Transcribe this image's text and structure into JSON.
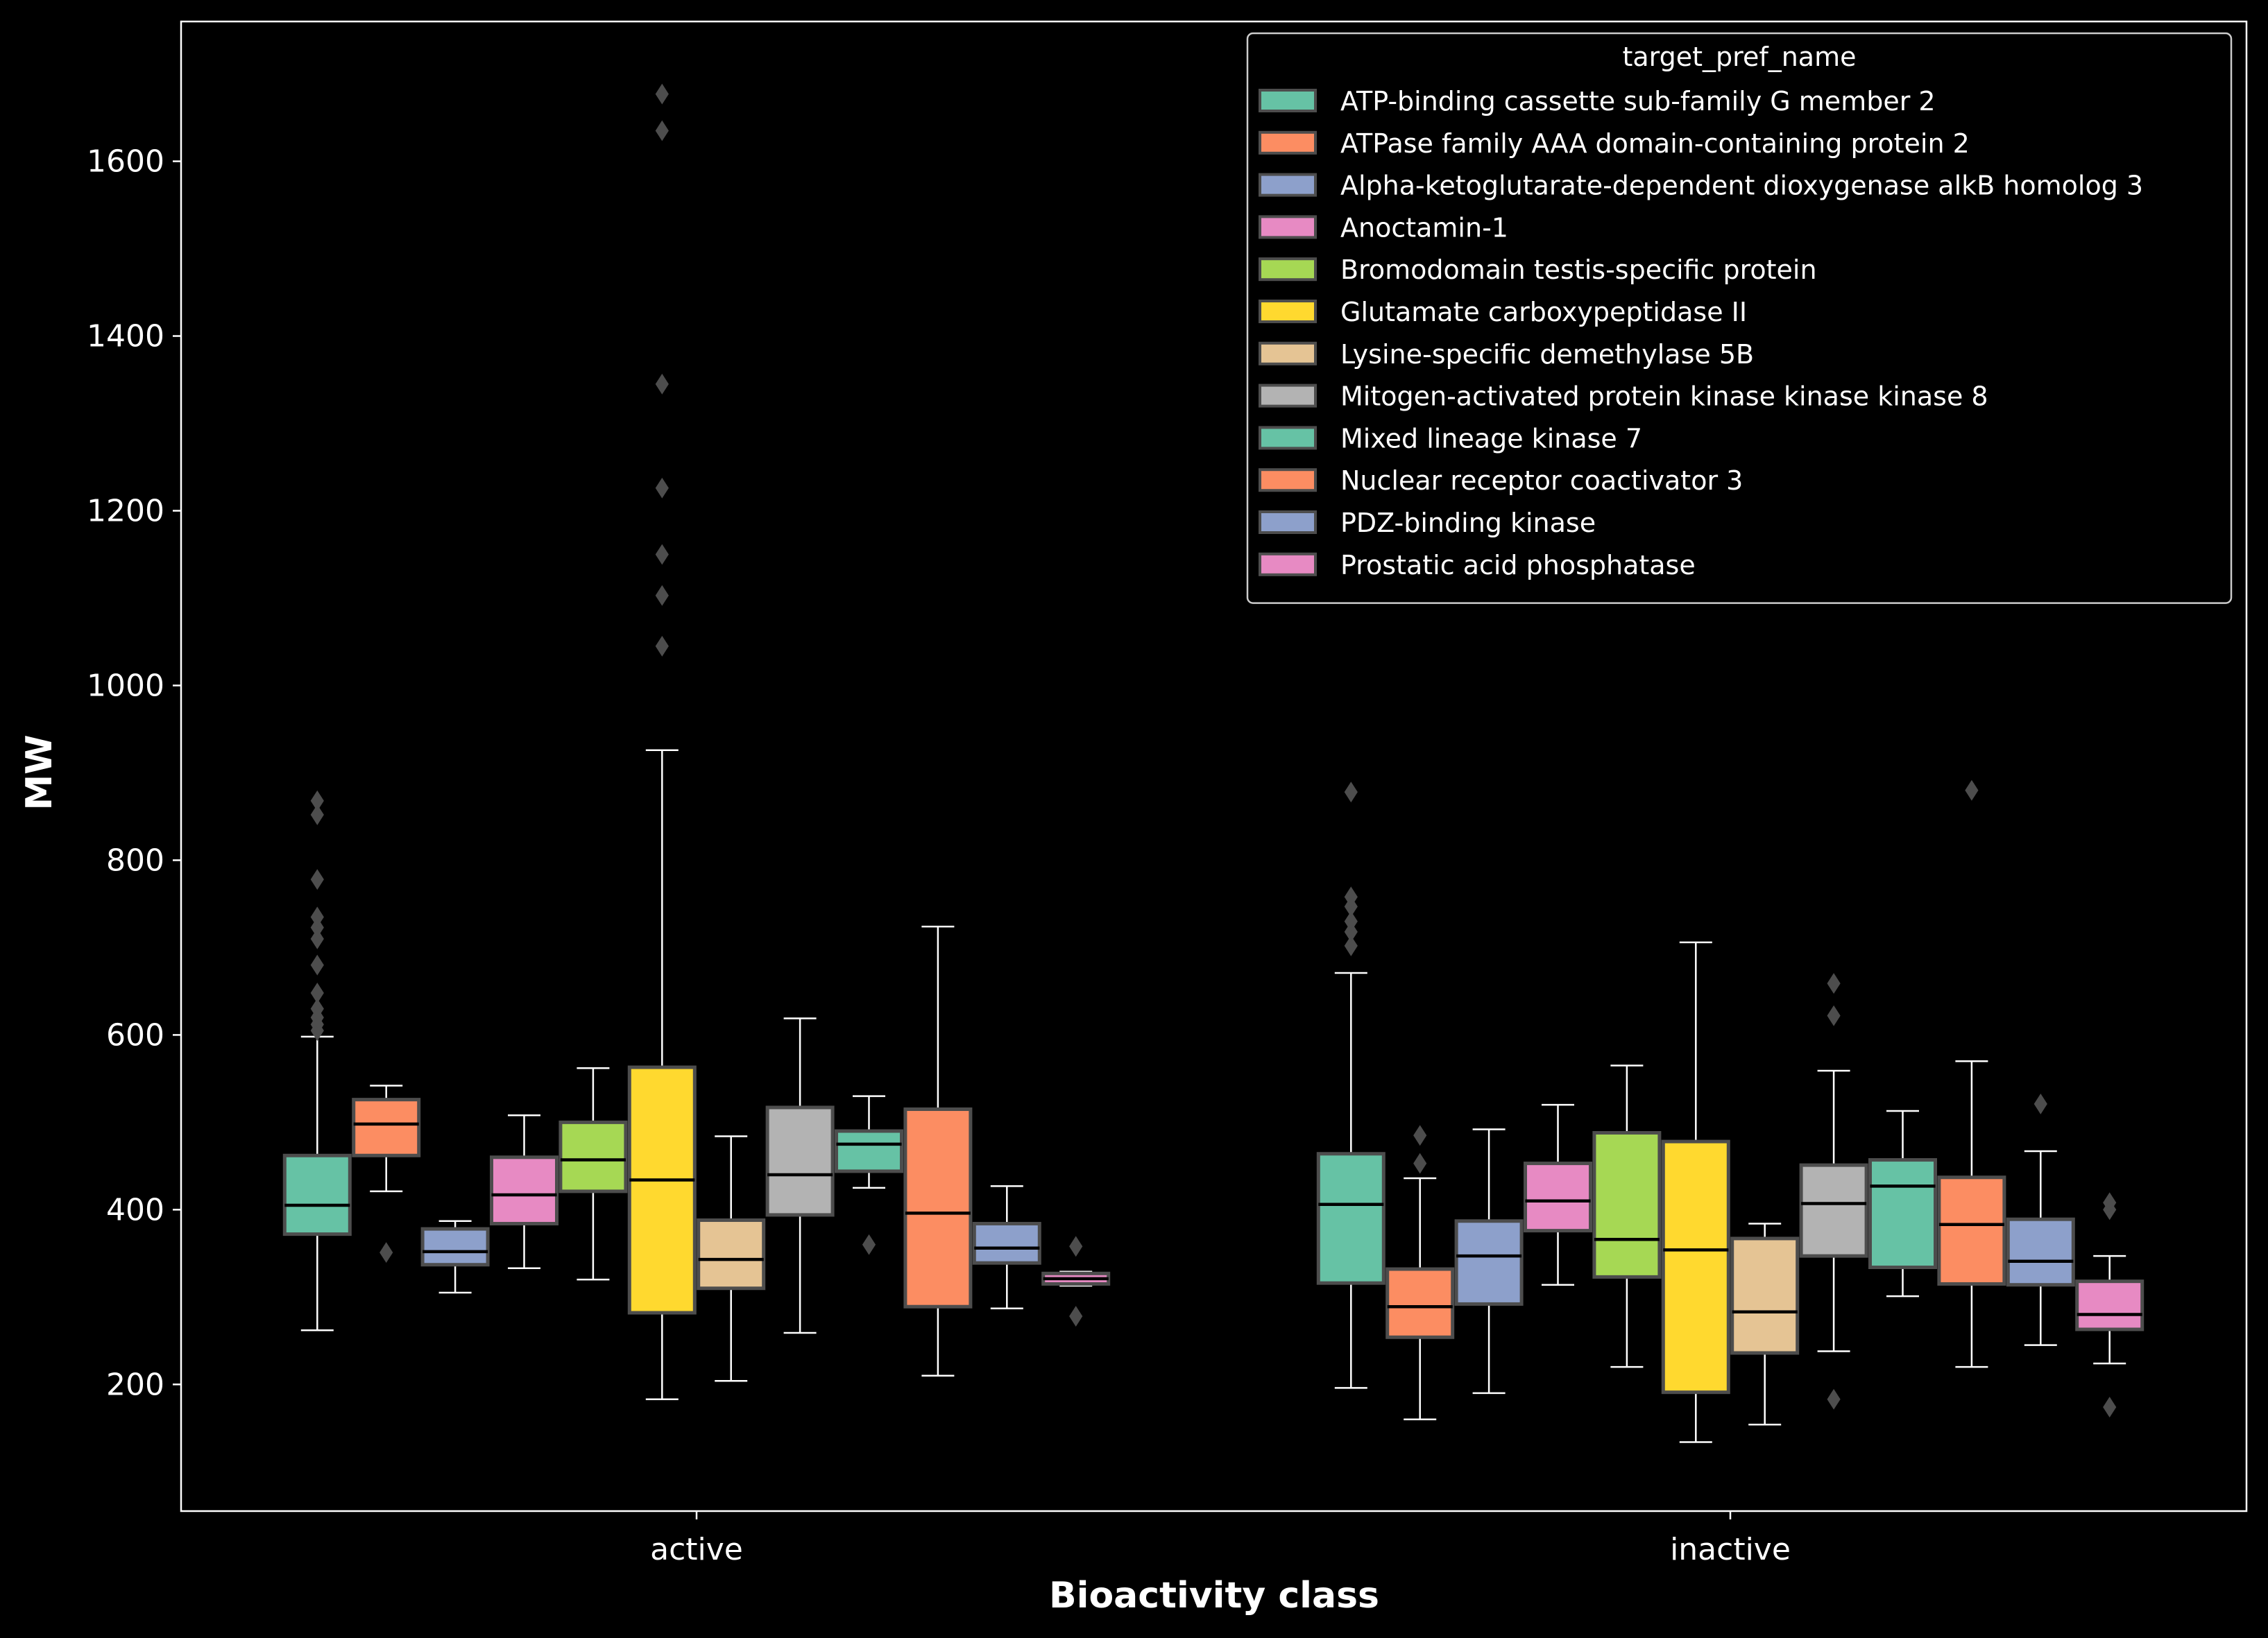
{
  "chart_data": {
    "type": "box",
    "xlabel": "Bioactivity class",
    "ylabel": "MW",
    "ylim": [
      55,
      1760
    ],
    "yticks": [
      200,
      400,
      600,
      800,
      1000,
      1200,
      1400,
      1600
    ],
    "categories": [
      "active",
      "inactive"
    ],
    "legend": {
      "title": "target_pref_name",
      "placement": "upper right"
    },
    "series": [
      {
        "name": "ATP-binding cassette sub-family G member 2",
        "color": "#66c2a5",
        "boxes": [
          {
            "category": "active",
            "q1": 372,
            "median": 405,
            "q3": 462,
            "whisker_low": 262,
            "whisker_high": 598,
            "outliers": [
              605,
              612,
              620,
              630,
              648,
              680,
              710,
              723,
              735,
              778,
              852,
              868
            ]
          },
          {
            "category": "inactive",
            "q1": 316,
            "median": 406,
            "q3": 464,
            "whisker_low": 196,
            "whisker_high": 671,
            "outliers": [
              702,
              718,
              730,
              747,
              758,
              878
            ]
          }
        ]
      },
      {
        "name": "ATPase family AAA domain-containing protein 2",
        "color": "#fc8d62",
        "boxes": [
          {
            "category": "active",
            "q1": 462,
            "median": 498,
            "q3": 526,
            "whisker_low": 421,
            "whisker_high": 542,
            "outliers": [
              351
            ]
          },
          {
            "category": "inactive",
            "q1": 254,
            "median": 289,
            "q3": 332,
            "whisker_low": 160,
            "whisker_high": 436,
            "outliers": [
              453,
              485
            ]
          }
        ]
      },
      {
        "name": "Alpha-ketoglutarate-dependent dioxygenase alkB homolog 3",
        "color": "#8da0cb",
        "boxes": [
          {
            "category": "active",
            "q1": 337,
            "median": 352,
            "q3": 378,
            "whisker_low": 305,
            "whisker_high": 387,
            "outliers": []
          },
          {
            "category": "inactive",
            "q1": 292,
            "median": 347,
            "q3": 387,
            "whisker_low": 190,
            "whisker_high": 492,
            "outliers": []
          }
        ]
      },
      {
        "name": "Anoctamin-1",
        "color": "#e78ac3",
        "boxes": [
          {
            "category": "active",
            "q1": 384,
            "median": 417,
            "q3": 460,
            "whisker_low": 333,
            "whisker_high": 508,
            "outliers": []
          },
          {
            "category": "inactive",
            "q1": 376,
            "median": 410,
            "q3": 453,
            "whisker_low": 314,
            "whisker_high": 520,
            "outliers": []
          }
        ]
      },
      {
        "name": "Bromodomain testis-specific protein",
        "color": "#a6d854",
        "boxes": [
          {
            "category": "active",
            "q1": 421,
            "median": 457,
            "q3": 500,
            "whisker_low": 320,
            "whisker_high": 562,
            "outliers": []
          },
          {
            "category": "inactive",
            "q1": 323,
            "median": 366,
            "q3": 488,
            "whisker_low": 220,
            "whisker_high": 565,
            "outliers": []
          }
        ]
      },
      {
        "name": "Glutamate carboxypeptidase II",
        "color": "#ffd92f",
        "boxes": [
          {
            "category": "active",
            "q1": 282,
            "median": 434,
            "q3": 563,
            "whisker_low": 183,
            "whisker_high": 926,
            "outliers": [
              1045,
              1103,
              1150,
              1226,
              1345,
              1635,
              1677
            ]
          },
          {
            "category": "inactive",
            "q1": 191,
            "median": 354,
            "q3": 478,
            "whisker_low": 134,
            "whisker_high": 706,
            "outliers": []
          }
        ]
      },
      {
        "name": "Lysine-specific demethylase 5B",
        "color": "#e5c494",
        "boxes": [
          {
            "category": "active",
            "q1": 310,
            "median": 343,
            "q3": 388,
            "whisker_low": 204,
            "whisker_high": 484,
            "outliers": []
          },
          {
            "category": "inactive",
            "q1": 236,
            "median": 283,
            "q3": 367,
            "whisker_low": 154,
            "whisker_high": 384,
            "outliers": []
          }
        ]
      },
      {
        "name": "Mitogen-activated protein kinase kinase kinase 8",
        "color": "#b3b3b3",
        "boxes": [
          {
            "category": "active",
            "q1": 394,
            "median": 440,
            "q3": 517,
            "whisker_low": 259,
            "whisker_high": 619,
            "outliers": []
          },
          {
            "category": "inactive",
            "q1": 347,
            "median": 407,
            "q3": 451,
            "whisker_low": 238,
            "whisker_high": 559,
            "outliers": [
              183,
              622,
              659
            ]
          }
        ]
      },
      {
        "name": "Mixed lineage kinase 7",
        "color": "#66c2a5",
        "boxes": [
          {
            "category": "active",
            "q1": 444,
            "median": 475,
            "q3": 490,
            "whisker_low": 425,
            "whisker_high": 530,
            "outliers": [
              360
            ]
          },
          {
            "category": "inactive",
            "q1": 334,
            "median": 427,
            "q3": 457,
            "whisker_low": 301,
            "whisker_high": 513,
            "outliers": []
          }
        ]
      },
      {
        "name": "Nuclear receptor coactivator 3",
        "color": "#fc8d62",
        "boxes": [
          {
            "category": "active",
            "q1": 289,
            "median": 396,
            "q3": 515,
            "whisker_low": 210,
            "whisker_high": 724,
            "outliers": []
          },
          {
            "category": "inactive",
            "q1": 315,
            "median": 383,
            "q3": 437,
            "whisker_low": 220,
            "whisker_high": 570,
            "outliers": [
              880
            ]
          }
        ]
      },
      {
        "name": "PDZ-binding kinase",
        "color": "#8da0cb",
        "boxes": [
          {
            "category": "active",
            "q1": 339,
            "median": 356,
            "q3": 384,
            "whisker_low": 287,
            "whisker_high": 427,
            "outliers": []
          },
          {
            "category": "inactive",
            "q1": 314,
            "median": 341,
            "q3": 389,
            "whisker_low": 245,
            "whisker_high": 467,
            "outliers": [
              521
            ]
          }
        ]
      },
      {
        "name": "Prostatic acid phosphatase",
        "color": "#e78ac3",
        "boxes": [
          {
            "category": "active",
            "q1": 315,
            "median": 321,
            "q3": 327,
            "whisker_low": 313,
            "whisker_high": 329,
            "outliers": [
              278,
              358
            ]
          },
          {
            "category": "inactive",
            "q1": 263,
            "median": 280,
            "q3": 318,
            "whisker_low": 224,
            "whisker_high": 347,
            "outliers": [
              174,
              400,
              408
            ]
          }
        ]
      }
    ]
  }
}
